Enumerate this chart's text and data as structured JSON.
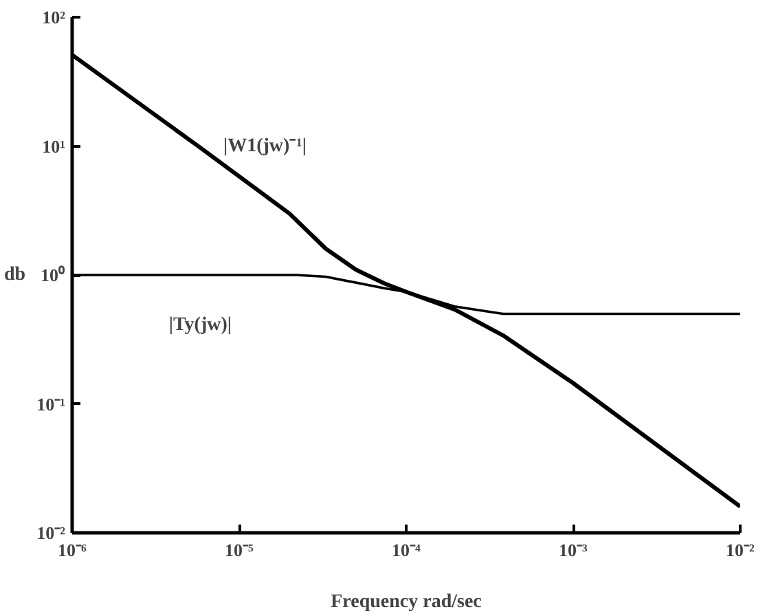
{
  "chart_data": {
    "type": "line",
    "xlabel": "Frequency rad/sec",
    "ylabel": "db",
    "log": "xy",
    "grid": false,
    "line_style": "solid",
    "marker": "none",
    "xlim": [
      1e-06,
      0.01
    ],
    "ylim": [
      0.01,
      100
    ],
    "xticks": [
      {
        "value": 1e-06,
        "label": "10⁻⁶"
      },
      {
        "value": 1e-05,
        "label": "10⁻⁵"
      },
      {
        "value": 0.0001,
        "label": "10⁻⁴"
      },
      {
        "value": 0.001,
        "label": "10⁻³"
      },
      {
        "value": 0.01,
        "label": "10⁻²"
      }
    ],
    "yticks": [
      {
        "value": 0.01,
        "label": "10⁻²"
      },
      {
        "value": 0.1,
        "label": "10⁻¹"
      },
      {
        "value": 1,
        "label": "10⁰"
      },
      {
        "value": 10,
        "label": "10¹"
      },
      {
        "value": 100,
        "label": "10²"
      }
    ],
    "series": [
      {
        "color": "#000000",
        "x": [
          1e-06,
          5.8e-06,
          2e-05,
          3.3e-05,
          5e-05,
          7.4e-05,
          0.0001,
          0.000195,
          0.00038,
          0.001,
          0.01
        ],
        "values": [
          51,
          9.8,
          3.0,
          1.6,
          1.1,
          0.86,
          0.74,
          0.54,
          0.34,
          0.145,
          0.016
        ]
      },
      {
        "color": "#000000",
        "x": [
          1e-06,
          2.2e-05,
          3.3e-05,
          7.4e-05,
          0.0001,
          0.000195,
          0.00038,
          0.01
        ],
        "values": [
          1,
          1,
          0.97,
          0.79,
          0.74,
          0.57,
          0.5,
          0.5
        ]
      }
    ],
    "annotations": [
      "|W1(jw)⁻¹|",
      "|Ty(jw)|"
    ]
  }
}
